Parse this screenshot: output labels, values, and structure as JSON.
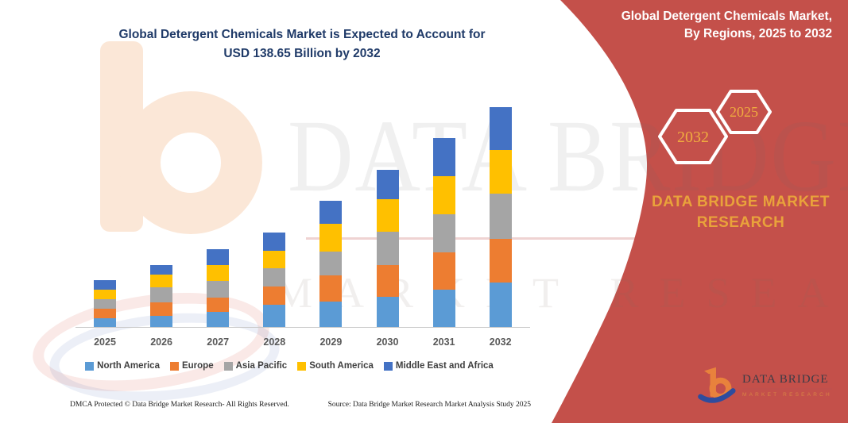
{
  "header": {
    "left_title_line1": "Global Detergent Chemicals Market is Expected to Account for",
    "left_title_line2": "USD 138.65 Billion by 2032",
    "right_title_line1": "Global Detergent Chemicals Market,",
    "right_title_line2": "By Regions, 2025 to 2032"
  },
  "side_panel": {
    "hexagon_back_year": "2032",
    "hexagon_front_year": "2025",
    "brand_line1": "DATA BRIDGE MARKET",
    "brand_line2": "RESEARCH",
    "logo": {
      "name": "DATA BRIDGE",
      "tagline": "MARKET RESEARCH"
    }
  },
  "watermark": {
    "line1": "DATA BRIDGE",
    "line2": "MARKET RESEARCH"
  },
  "footer": {
    "left": "DMCA Protected © Data Bridge Market Research-  All Rights Reserved.",
    "right": "Source: Data Bridge Market Research  Market Analysis Study 2025"
  },
  "colors": {
    "panel_red": "#C4504A",
    "title_navy": "#1F3A68",
    "accent_gold": "#F0AD3F",
    "brand_orange": "#E9A23B",
    "axis_gray": "#C9C9C9",
    "logo_orange": "#E8823C",
    "logo_blue": "#2E4C9E"
  },
  "chart_data": {
    "type": "bar",
    "stacked": true,
    "title": "Global Detergent Chemicals Market is Expected to Account for USD 138.65 Billion by 2032",
    "unit": "USD Billion",
    "categories": [
      "2025",
      "2026",
      "2027",
      "2028",
      "2029",
      "2030",
      "2031",
      "2032"
    ],
    "series": [
      {
        "name": "North America",
        "color": "#5B9BD5",
        "values": [
          5.3,
          7.2,
          9.5,
          14.0,
          15.9,
          19.2,
          23.4,
          27.9
        ]
      },
      {
        "name": "Europe",
        "color": "#ED7D31",
        "values": [
          6.2,
          8.2,
          9.2,
          11.3,
          16.7,
          19.6,
          23.4,
          27.7
        ]
      },
      {
        "name": "Asia Pacific",
        "color": "#A5A5A5",
        "values": [
          5.9,
          9.7,
          10.5,
          11.8,
          14.7,
          21.4,
          24.2,
          28.2
        ]
      },
      {
        "name": "South America",
        "color": "#FFC000",
        "values": [
          6.2,
          8.0,
          10.0,
          11.0,
          17.9,
          20.1,
          24.2,
          27.7
        ]
      },
      {
        "name": "Middle East and Africa",
        "color": "#4472C4",
        "values": [
          6.0,
          6.1,
          10.0,
          11.3,
          14.2,
          18.7,
          23.7,
          27.15
        ]
      }
    ],
    "totals_estimated": [
      29.6,
      39.2,
      49.2,
      59.4,
      79.4,
      99.0,
      118.9,
      138.65
    ],
    "xlabel": "",
    "ylabel": "",
    "ylim": [
      0,
      140
    ],
    "gridlines": false,
    "y_axis_shown": false,
    "legend_position": "bottom"
  }
}
